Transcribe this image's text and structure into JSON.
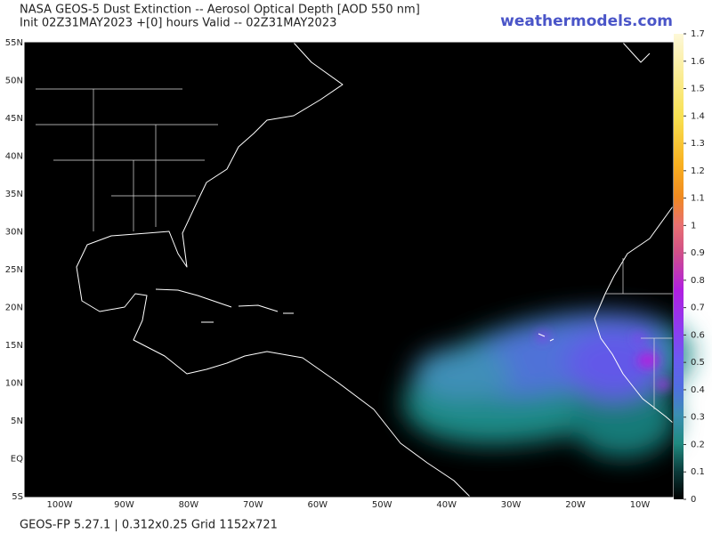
{
  "header": {
    "title": "NASA GEOS-5 Dust Extinction -- Aerosol Optical Depth [AOD 550 nm]",
    "subtitle": "Init 02Z31MAY2023 +[0] hours Valid -- 02Z31MAY2023",
    "brand": "weathermodels.com"
  },
  "map": {
    "lat_labels": [
      "55N",
      "50N",
      "45N",
      "40N",
      "35N",
      "30N",
      "25N",
      "20N",
      "15N",
      "10N",
      "5N",
      "EQ",
      "5S"
    ],
    "lon_labels": [
      "100W",
      "90W",
      "80W",
      "70W",
      "60W",
      "50W",
      "40W",
      "30W",
      "20W",
      "10W"
    ]
  },
  "colorbar": {
    "ticks": [
      0,
      0.1,
      0.2,
      0.3,
      0.4,
      0.5,
      0.6,
      0.7,
      0.8,
      0.9,
      1,
      1.1,
      1.2,
      1.3,
      1.4,
      1.5,
      1.6,
      1.7
    ]
  },
  "footer": "GEOS-FP 5.27.1 | 0.312x0.25 Grid 1152x721"
}
